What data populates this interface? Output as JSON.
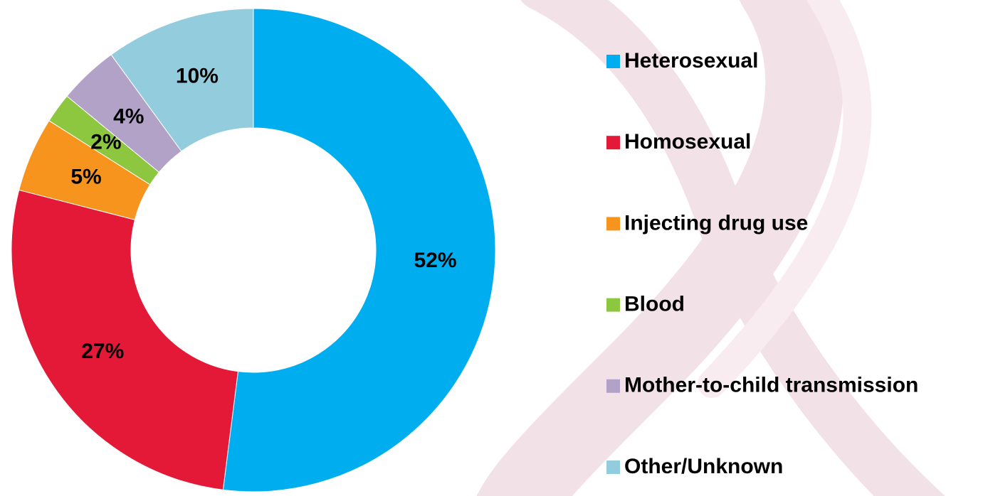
{
  "chart_data": {
    "type": "donut",
    "categories": [
      "Heterosexual",
      "Homosexual",
      "Injecting drug use",
      "Blood",
      "Mother-to-child transmission",
      "Other/Unknown"
    ],
    "values": [
      52,
      27,
      5,
      2,
      4,
      10
    ],
    "value_labels": [
      "52%",
      "27%",
      "5%",
      "2%",
      "4%",
      "10%"
    ],
    "colors": [
      "#00aeef",
      "#e31937",
      "#f7941d",
      "#8dc63f",
      "#b3a2c7",
      "#93cddd"
    ],
    "legend": "right"
  }
}
